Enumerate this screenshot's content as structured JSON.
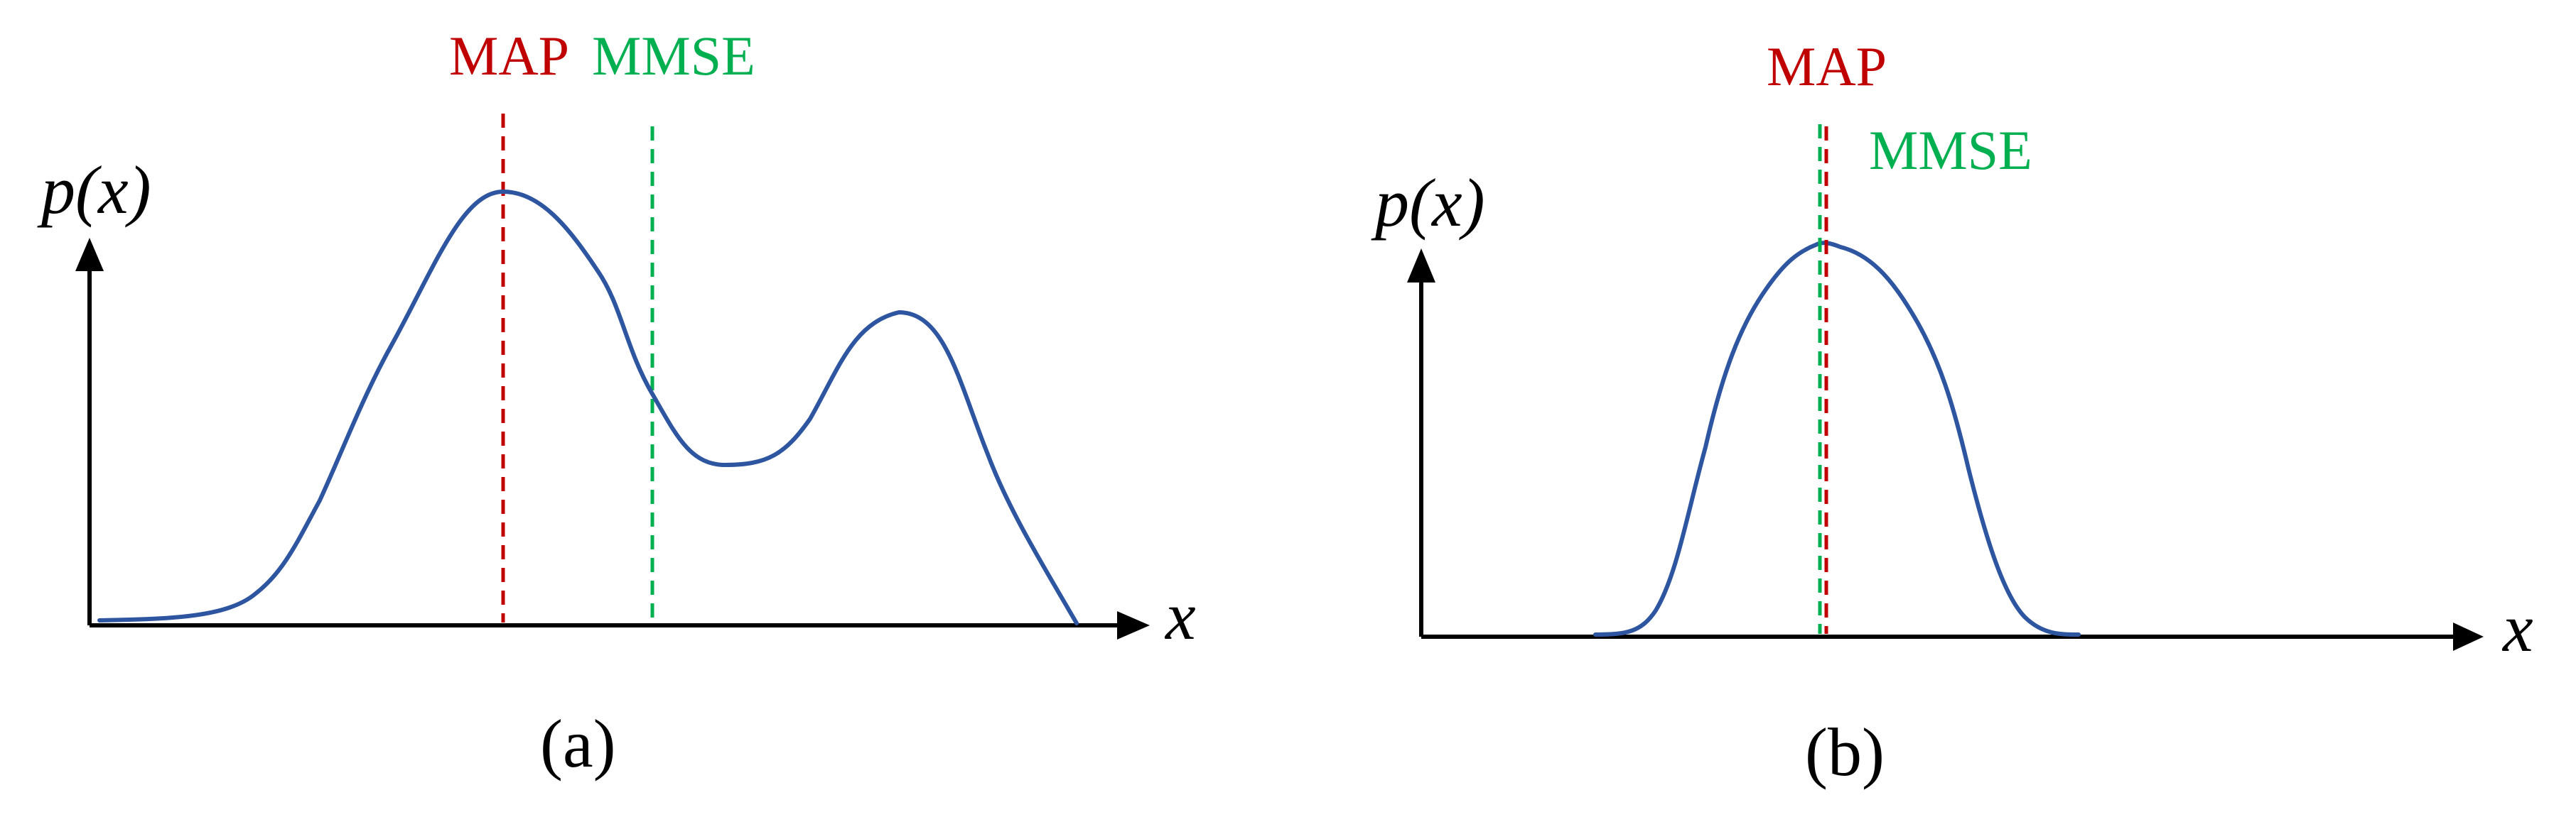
{
  "colors": {
    "curve": "#2E55A0",
    "map": "#C00000",
    "mmse": "#00B050",
    "axis": "#000000"
  },
  "panels": [
    {
      "caption": "(a)",
      "y_axis_label": "p(x)",
      "x_axis_label": "x",
      "map_label": "MAP",
      "mmse_label": "MMSE"
    },
    {
      "caption": "(b)",
      "y_axis_label": "p(x)",
      "x_axis_label": "x",
      "map_label": "MAP",
      "mmse_label": "MMSE"
    }
  ]
}
